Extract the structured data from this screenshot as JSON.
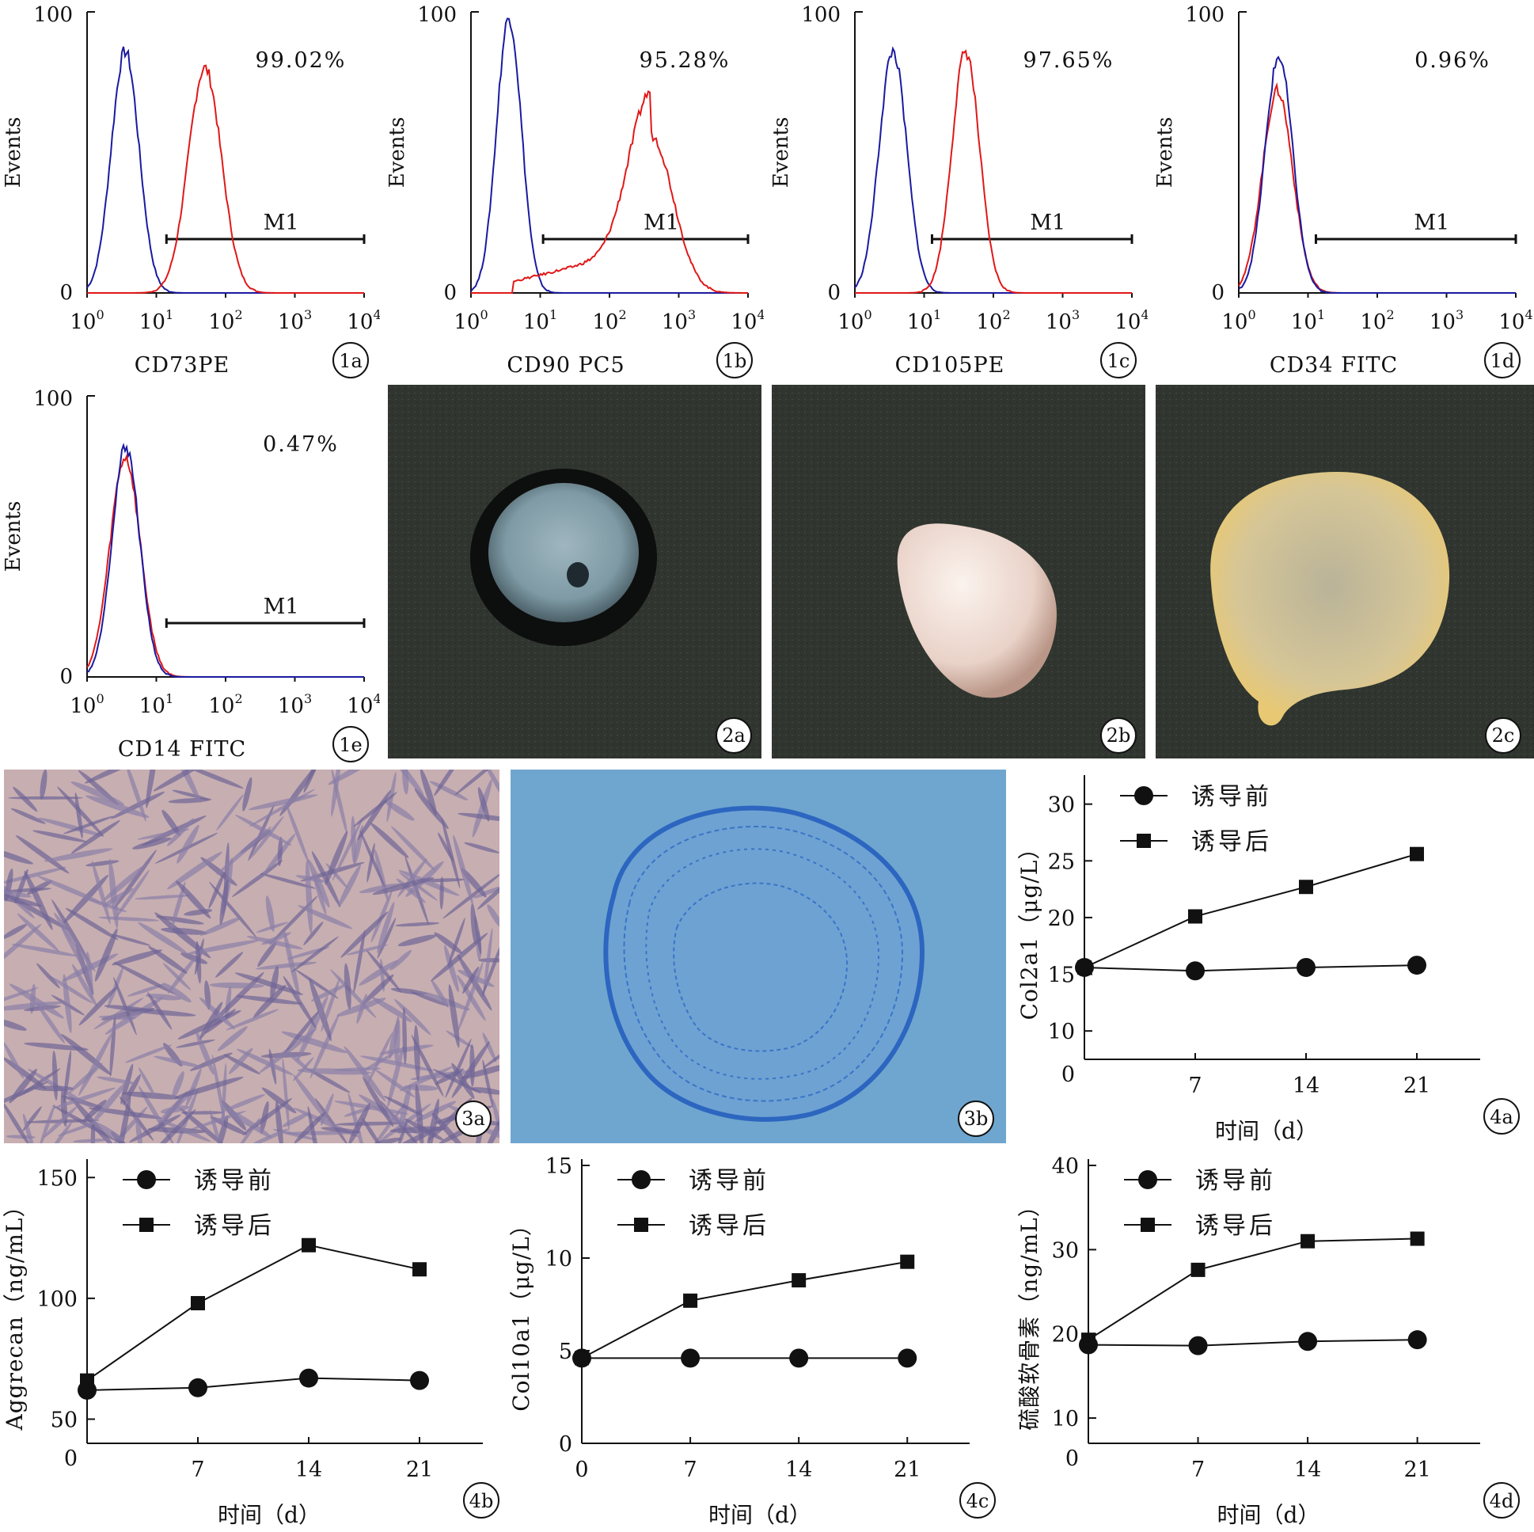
{
  "chart_data": [
    {
      "id": "1a",
      "type": "histogram",
      "label": "1a",
      "xlabel": "CD73PE",
      "ylabel": "Events",
      "xscale": "log",
      "xticks": [
        "10^0",
        "10^1",
        "10^2",
        "10^3",
        "10^4"
      ],
      "yticks": [
        "0",
        "100"
      ],
      "percent": "99.02%",
      "gate": "M1",
      "gate_range": [
        14,
        10000
      ],
      "series": [
        {
          "color": "#1a1aa0",
          "peak_decades": 0.55,
          "width_decades": 0.2,
          "peak_height": 0.86
        },
        {
          "color": "#e01818",
          "peak_decades": 1.7,
          "width_decades": 0.24,
          "peak_height": 0.8
        }
      ]
    },
    {
      "id": "1b",
      "type": "histogram",
      "label": "1b",
      "xlabel": "CD90 PC5",
      "ylabel": "Events",
      "xscale": "log",
      "xticks": [
        "10^0",
        "10^1",
        "10^2",
        "10^3",
        "10^4"
      ],
      "yticks": [
        "0",
        "100"
      ],
      "percent": "95.28%",
      "gate": "M1",
      "gate_range": [
        11,
        10000
      ],
      "series": [
        {
          "color": "#1a1aa0",
          "peak_decades": 0.55,
          "width_decades": 0.18,
          "peak_height": 0.98
        },
        {
          "color": "#e01818",
          "peak_decades": 2.6,
          "width_decades": 0.32,
          "peak_height": 0.56
        }
      ]
    },
    {
      "id": "1c",
      "type": "histogram",
      "label": "1c",
      "xlabel": "CD105PE",
      "ylabel": "Events",
      "xscale": "log",
      "xticks": [
        "10^0",
        "10^1",
        "10^2",
        "10^3",
        "10^4"
      ],
      "yticks": [
        "0",
        "100"
      ],
      "percent": "97.65%",
      "gate": "M1",
      "gate_range": [
        13,
        10000
      ],
      "series": [
        {
          "color": "#1a1aa0",
          "peak_decades": 0.55,
          "width_decades": 0.2,
          "peak_height": 0.86
        },
        {
          "color": "#e01818",
          "peak_decades": 1.6,
          "width_decades": 0.2,
          "peak_height": 0.86
        }
      ]
    },
    {
      "id": "1d",
      "type": "histogram",
      "label": "1d",
      "xlabel": "CD34 FITC",
      "ylabel": "Events",
      "xscale": "log",
      "xticks": [
        "10^0",
        "10^1",
        "10^2",
        "10^3",
        "10^4"
      ],
      "yticks": [
        "0",
        "100"
      ],
      "percent": "0.96%",
      "gate": "M1",
      "gate_range": [
        13,
        10000
      ],
      "series": [
        {
          "color": "#e01818",
          "peak_decades": 0.56,
          "width_decades": 0.22,
          "peak_height": 0.72
        },
        {
          "color": "#1a1aa0",
          "peak_decades": 0.58,
          "width_decades": 0.2,
          "peak_height": 0.84
        }
      ]
    },
    {
      "id": "1e",
      "type": "histogram",
      "label": "1e",
      "xlabel": "CD14 FITC",
      "ylabel": "Events",
      "xscale": "log",
      "xticks": [
        "10^0",
        "10^1",
        "10^2",
        "10^3",
        "10^4"
      ],
      "yticks": [
        "0",
        "100"
      ],
      "percent": "0.47%",
      "gate": "M1",
      "gate_range": [
        14,
        10000
      ],
      "series": [
        {
          "color": "#e01818",
          "peak_decades": 0.55,
          "width_decades": 0.22,
          "peak_height": 0.78
        },
        {
          "color": "#1a1aa0",
          "peak_decades": 0.56,
          "width_decades": 0.2,
          "peak_height": 0.82
        }
      ]
    },
    {
      "id": "4a",
      "type": "line",
      "label": "4a",
      "xlabel": "时间（d）",
      "ylabel": "Col2a1（μg/L）",
      "x": [
        0,
        7,
        14,
        21
      ],
      "xticks": [
        7,
        14,
        21
      ],
      "ylim": [
        7.5,
        32
      ],
      "yticks": [
        10,
        15,
        20,
        25,
        30
      ],
      "series": [
        {
          "name": "诱导前",
          "marker": "circle",
          "values": [
            15.6,
            15.3,
            15.6,
            15.8
          ]
        },
        {
          "name": "诱导后",
          "marker": "square",
          "values": [
            15.6,
            20.1,
            22.7,
            25.6
          ]
        }
      ]
    },
    {
      "id": "4b",
      "type": "line",
      "label": "4b",
      "xlabel": "时间（d）",
      "ylabel": "Aggrecan（ng/mL）",
      "x": [
        0,
        7,
        14,
        21
      ],
      "xticks": [
        7,
        14,
        21
      ],
      "ylim": [
        40,
        155
      ],
      "yticks": [
        50,
        100,
        150
      ],
      "series": [
        {
          "name": "诱导前",
          "marker": "circle",
          "values": [
            62,
            63,
            67,
            66
          ]
        },
        {
          "name": "诱导后",
          "marker": "square",
          "values": [
            66,
            98,
            122,
            112
          ]
        }
      ]
    },
    {
      "id": "4c",
      "type": "line",
      "label": "4c",
      "xlabel": "时间（d）",
      "ylabel": "Col10a1（μg/L）",
      "x": [
        0,
        7,
        14,
        21
      ],
      "xticks": [
        0,
        7,
        14,
        21
      ],
      "ylim": [
        0,
        15
      ],
      "yticks": [
        0,
        5,
        10,
        15
      ],
      "series": [
        {
          "name": "诱导前",
          "marker": "circle",
          "values": [
            4.6,
            4.6,
            4.6,
            4.6
          ]
        },
        {
          "name": "诱导后",
          "marker": "square",
          "values": [
            4.6,
            7.7,
            8.8,
            9.8
          ]
        }
      ]
    },
    {
      "id": "4d",
      "type": "line",
      "label": "4d",
      "xlabel": "时间（d）",
      "ylabel": "硫酸软骨素（ng/mL）",
      "x": [
        0,
        7,
        14,
        21
      ],
      "xticks": [
        7,
        14,
        21
      ],
      "ylim": [
        7,
        40
      ],
      "yticks": [
        10,
        20,
        30,
        40
      ],
      "series": [
        {
          "name": "诱导前",
          "marker": "circle",
          "values": [
            18.7,
            18.6,
            19.1,
            19.3
          ]
        },
        {
          "name": "诱导后",
          "marker": "square",
          "values": [
            19.3,
            27.6,
            31.0,
            31.3
          ]
        }
      ]
    }
  ],
  "photos": [
    {
      "id": "2a",
      "label": "2a"
    },
    {
      "id": "2b",
      "label": "2b"
    },
    {
      "id": "2c",
      "label": "2c"
    },
    {
      "id": "3a",
      "label": "3a"
    },
    {
      "id": "3b",
      "label": "3b"
    }
  ],
  "colors": {
    "isotype": "#1a1aa0",
    "stained": "#e01818",
    "photo_bg": "#2f3430",
    "stain_bg": "#6fa6cf"
  }
}
